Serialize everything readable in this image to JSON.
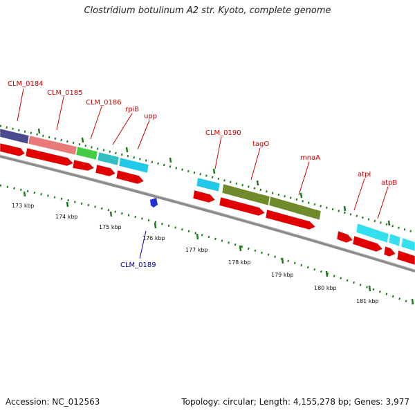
{
  "title": "Clostridium botulinum A2 str. Kyoto, complete genome",
  "accession": "Accession: NC_012563",
  "topology": "Topology: circular; Length: 4,155,278 bp; Genes: 3,977",
  "colors": {
    "label_red": "#cc0000",
    "label_blue": "#0000aa",
    "tick_green": "#1a7a1a",
    "backbone": "#8c8c8c",
    "cds_red": "#e00000",
    "gene_navy": "#4a4a8c",
    "gene_pink": "#e87a7a",
    "gene_green": "#44cc44",
    "gene_teal": "#33c0c0",
    "gene_cyan": "#22c8e8",
    "gene_olive": "#6e8a2a",
    "gene_lightcyan": "#33e0f0",
    "marker_blue": "#1f2fd8"
  },
  "kbp_labels": [
    "173 kbp",
    "174 kbp",
    "175 kbp",
    "176 kbp",
    "177 kbp",
    "178 kbp",
    "179 kbp",
    "180 kbp",
    "181 kbp"
  ],
  "gene_labels": [
    {
      "text": "CLM_0184",
      "color": "red"
    },
    {
      "text": "CLM_0185",
      "color": "red"
    },
    {
      "text": "CLM_0186",
      "color": "red"
    },
    {
      "text": "rpiB",
      "color": "red"
    },
    {
      "text": "upp",
      "color": "red"
    },
    {
      "text": "CLM_0190",
      "color": "red"
    },
    {
      "text": "tagO",
      "color": "red"
    },
    {
      "text": "mnaA",
      "color": "red"
    },
    {
      "text": "atpI",
      "color": "red"
    },
    {
      "text": "atpB",
      "color": "red"
    },
    {
      "text": "CLM_0189",
      "color": "blue"
    }
  ]
}
